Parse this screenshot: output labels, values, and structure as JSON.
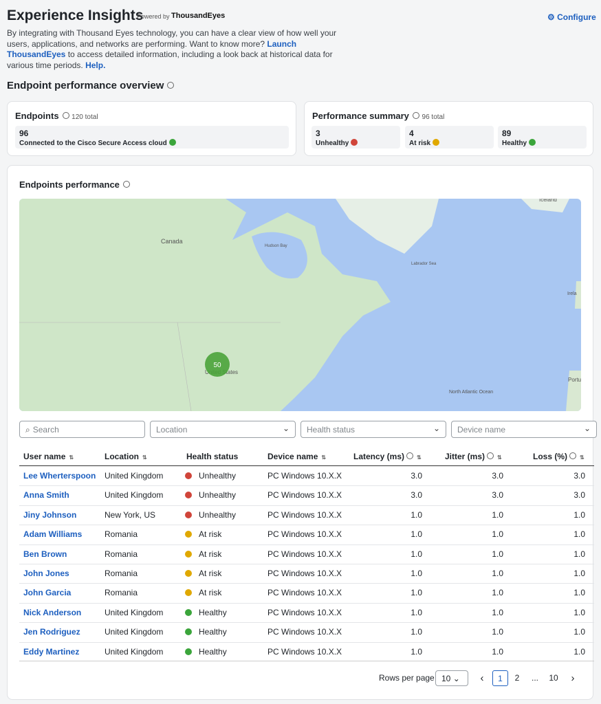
{
  "header": {
    "title": "Experience Insights",
    "powered_by": "Powered by",
    "brand": "ThousandEyes",
    "configure": "Configure"
  },
  "intro": {
    "text1": "By integrating with Thousand Eyes technology, you can have a clear view of how well your users, applications, and networks are performing. Want to know more?",
    "link1": "Launch ThousandEyes",
    "text2": "to access detailed information, including a look back at historical data for various time periods.",
    "link2": "Help."
  },
  "overview": {
    "title": "Endpoint performance overview",
    "endpoints": {
      "title": "Endpoints",
      "total": "120 total",
      "count": "96",
      "label": "Connected to the Cisco Secure Access cloud"
    },
    "summary": {
      "title": "Performance summary",
      "total": "96 total",
      "items": [
        {
          "count": "3",
          "label": "Unhealthy"
        },
        {
          "count": "4",
          "label": "At risk"
        },
        {
          "count": "89",
          "label": "Healthy"
        }
      ]
    }
  },
  "map": {
    "title": "Endpoints performance",
    "labels": [
      "Canada",
      "Hudson Bay",
      "Labrador Sea",
      "Iceland",
      "Irela",
      "United States",
      "North Atlantic Ocean",
      "Portu"
    ],
    "cluster": "50"
  },
  "filters": [
    "Search",
    "Location",
    "Health status",
    "Device name"
  ],
  "table": {
    "columns": [
      "User name",
      "Location",
      "Health status",
      "Device name",
      "Latency (ms)",
      "Jitter (ms)",
      "Loss (%)"
    ],
    "rows": [
      [
        "Lee Wherterspoon",
        "United Kingdom",
        "Unhealthy",
        "PC Windows 10.X.X",
        "3.0",
        "3.0",
        "3.0"
      ],
      [
        "Anna Smith",
        "United Kingdom",
        "Unhealthy",
        "PC Windows 10.X.X",
        "3.0",
        "3.0",
        "3.0"
      ],
      [
        "Jiny Johnson",
        "New York, US",
        "Unhealthy",
        "PC Windows 10.X.X",
        "1.0",
        "1.0",
        "1.0"
      ],
      [
        "Adam Williams",
        "Romania",
        "At risk",
        "PC Windows 10.X.X",
        "1.0",
        "1.0",
        "1.0"
      ],
      [
        "Ben Brown",
        "Romania",
        "At risk",
        "PC Windows 10.X.X",
        "1.0",
        "1.0",
        "1.0"
      ],
      [
        "John Jones",
        "Romania",
        "At risk",
        "PC Windows 10.X.X",
        "1.0",
        "1.0",
        "1.0"
      ],
      [
        "John Garcia",
        "Romania",
        "At risk",
        "PC Windows 10.X.X",
        "1.0",
        "1.0",
        "1.0"
      ],
      [
        "Nick Anderson",
        "United Kingdom",
        "Healthy",
        "PC Windows 10.X.X",
        "1.0",
        "1.0",
        "1.0"
      ],
      [
        "Jen Rodriguez",
        "United Kingdom",
        "Healthy",
        "PC Windows 10.X.X",
        "1.0",
        "1.0",
        "1.0"
      ],
      [
        "Eddy Martinez",
        "United Kingdom",
        "Healthy",
        "PC Windows 10.X.X",
        "1.0",
        "1.0",
        "1.0"
      ]
    ]
  },
  "pagination": {
    "rows_label": "Rows per page",
    "rows_value": "10",
    "pages": [
      "1",
      "2",
      "...",
      "10"
    ]
  }
}
